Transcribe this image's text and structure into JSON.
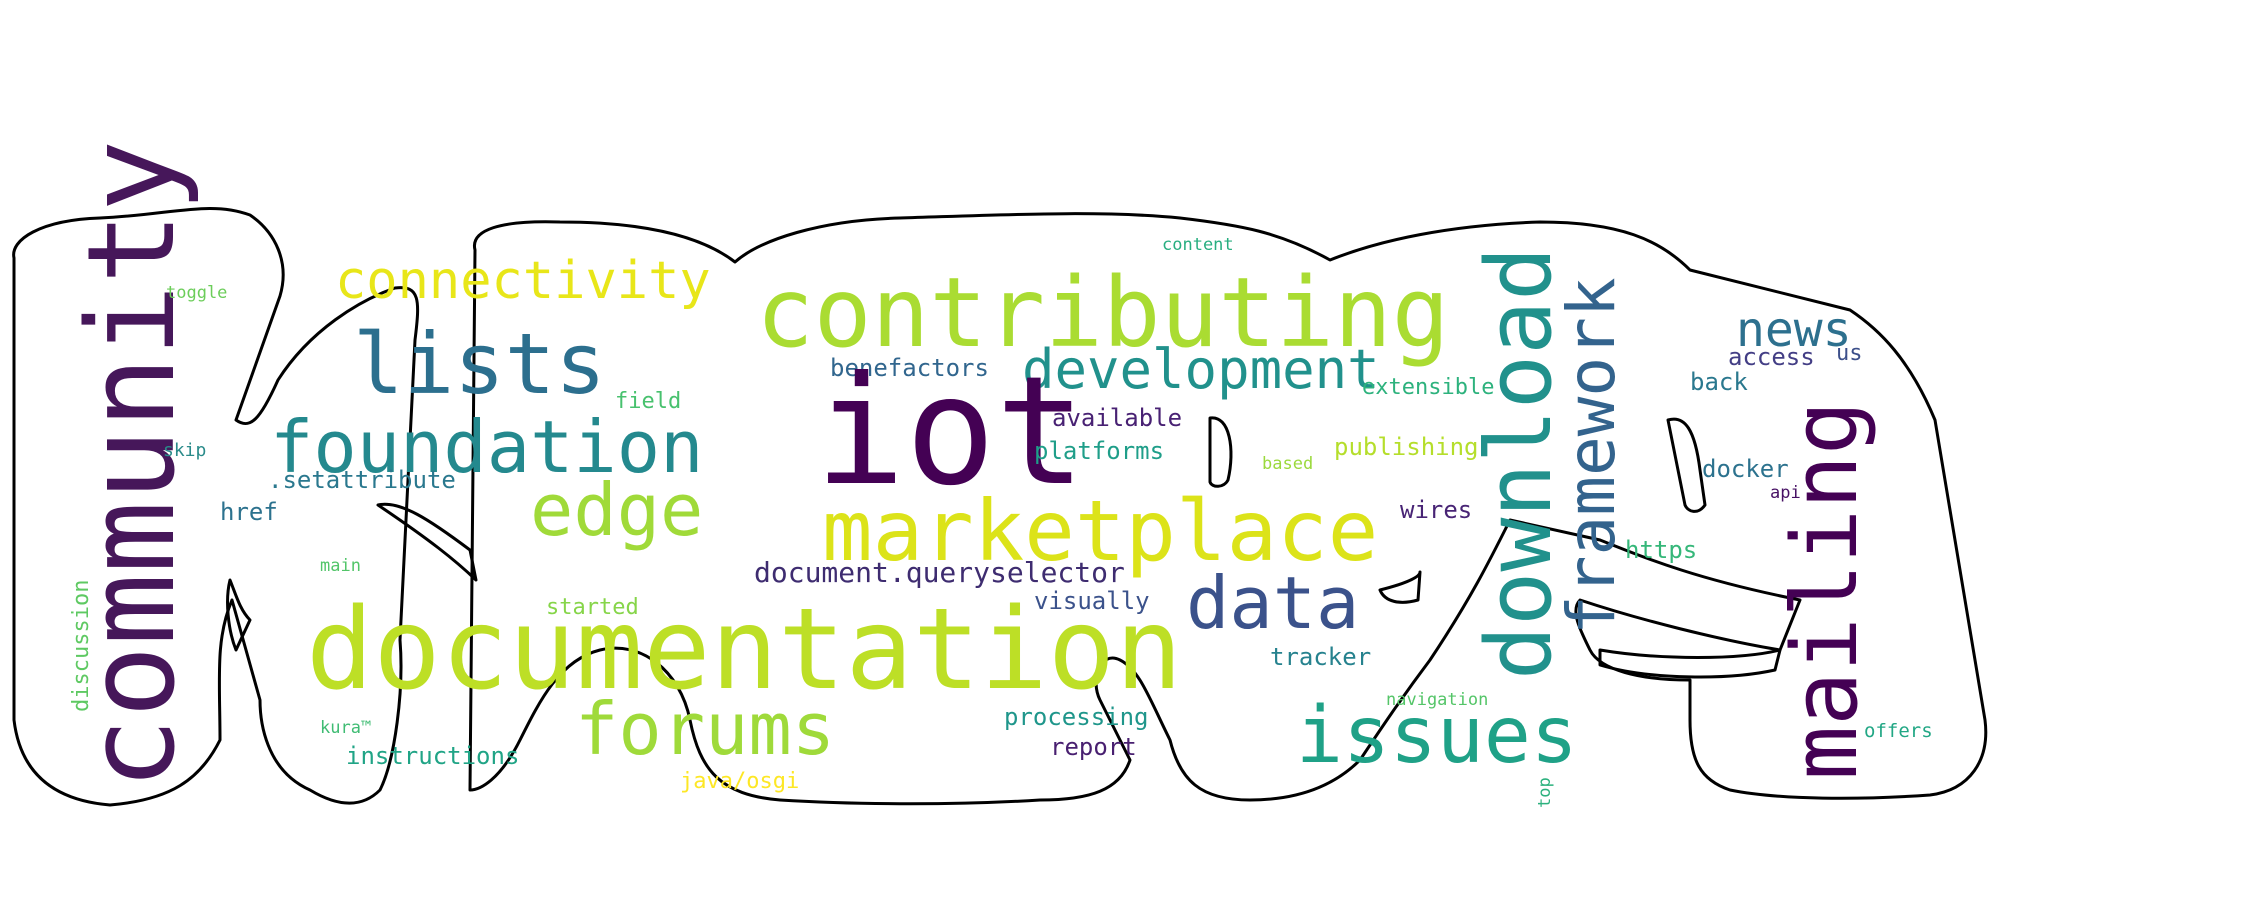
{
  "colors": {
    "background": "#ffffff",
    "outline": "#000000"
  },
  "words": [
    {
      "text": "community",
      "color": "#46175a"
    },
    {
      "text": "toggle",
      "color": "#6ccd5a"
    },
    {
      "text": "connectivity",
      "color": "#e8e619"
    },
    {
      "text": "lists",
      "color": "#2c6f8e"
    },
    {
      "text": "foundation",
      "color": "#24898e"
    },
    {
      "text": "field",
      "color": "#48c16e"
    },
    {
      "text": "skip",
      "color": "#2a8b8a"
    },
    {
      "text": ".setattribute",
      "color": "#2a788e"
    },
    {
      "text": "edge",
      "color": "#a0da39"
    },
    {
      "text": "href",
      "color": "#2c728e"
    },
    {
      "text": "main",
      "color": "#52c569"
    },
    {
      "text": "discussion",
      "color": "#5ec962"
    },
    {
      "text": "started",
      "color": "#86d549"
    },
    {
      "text": "documentation",
      "color": "#bddf26"
    },
    {
      "text": "kura™",
      "color": "#3fbc73"
    },
    {
      "text": "instructions",
      "color": "#20a486"
    },
    {
      "text": "forums",
      "color": "#9fda3a"
    },
    {
      "text": "java/osgi",
      "color": "#fde725"
    },
    {
      "text": "content",
      "color": "#28ae80"
    },
    {
      "text": "contributing",
      "color": "#aadc32"
    },
    {
      "text": "benefactors",
      "color": "#31668e"
    },
    {
      "text": "development",
      "color": "#21918c"
    },
    {
      "text": "iot",
      "color": "#440154"
    },
    {
      "text": "available",
      "color": "#482173"
    },
    {
      "text": "platforms",
      "color": "#1f9e89"
    },
    {
      "text": "marketplace",
      "color": "#dce319"
    },
    {
      "text": "document.queryselector",
      "color": "#3e2c70"
    },
    {
      "text": "visually",
      "color": "#3b528b"
    },
    {
      "text": "data",
      "color": "#3b528b"
    },
    {
      "text": "processing",
      "color": "#1f968b"
    },
    {
      "text": "report",
      "color": "#481f70"
    },
    {
      "text": "tracker",
      "color": "#26828e"
    },
    {
      "text": "extensible",
      "color": "#2db27d"
    },
    {
      "text": "based",
      "color": "#9bd93c"
    },
    {
      "text": "publishing",
      "color": "#b5de2b"
    },
    {
      "text": "wires",
      "color": "#482475"
    },
    {
      "text": "download",
      "color": "#21918c"
    },
    {
      "text": "framework",
      "color": "#33638d"
    },
    {
      "text": "issues",
      "color": "#1fa187"
    },
    {
      "text": "navigation",
      "color": "#54c568"
    },
    {
      "text": "top",
      "color": "#2cb17e"
    },
    {
      "text": "news",
      "color": "#2d708e"
    },
    {
      "text": "access",
      "color": "#433e85"
    },
    {
      "text": "us",
      "color": "#3c4f8a"
    },
    {
      "text": "back",
      "color": "#2a788e"
    },
    {
      "text": "docker",
      "color": "#2c728e"
    },
    {
      "text": "api",
      "color": "#471164"
    },
    {
      "text": "https",
      "color": "#35b779"
    },
    {
      "text": "mailing",
      "color": "#440154"
    },
    {
      "text": "offers",
      "color": "#22a785"
    }
  ]
}
